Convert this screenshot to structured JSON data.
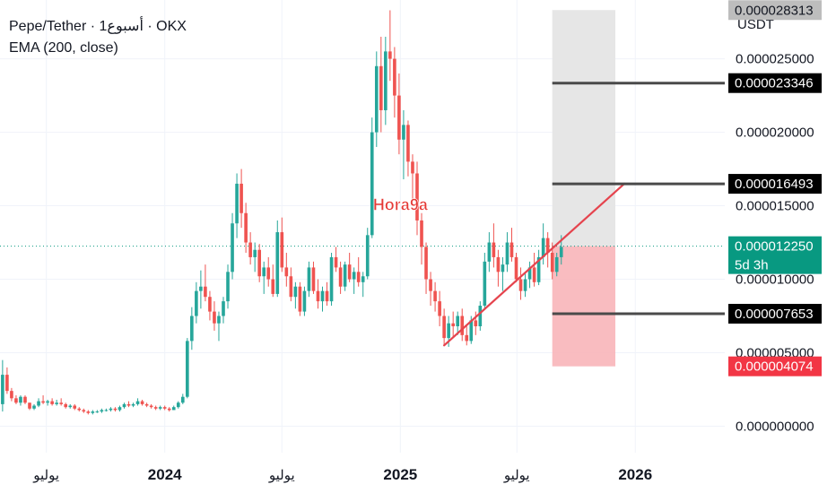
{
  "header": {
    "symbol_line": "Pepe/Tether · 1أسبوع · OKX",
    "indicator": "EMA (200, close)"
  },
  "axis": {
    "currency": "USDT"
  },
  "watermark": "Hora9a",
  "colors": {
    "up": "#26a69a",
    "down": "#ef5350",
    "trendline": "#e5444e",
    "level_line": "#4a4a4a",
    "profit_zone": "#e6e6e6",
    "loss_zone": "#f8b5b9",
    "price_tag": "#089981",
    "stop_tag": "#f23645",
    "target_tag": "#bdbdbd",
    "level_tag": "#000000"
  },
  "chart_data": {
    "type": "candlestick",
    "ylim": [
      -1.8e-06,
      2.9e-05
    ],
    "y_ticks": [
      {
        "label": "0.000000000",
        "value": 0
      },
      {
        "label": "0.000005000",
        "value": 5e-06
      },
      {
        "label": "0.000010000",
        "value": 1e-05
      },
      {
        "label": "0.000015000",
        "value": 1.5e-05
      },
      {
        "label": "0.000020000",
        "value": 2e-05
      },
      {
        "label": "0.000025000",
        "value": 2.5e-05
      }
    ],
    "x_ticks": [
      {
        "label": "يوليو",
        "date": "2023-07-01",
        "bold": false
      },
      {
        "label": "2024",
        "date": "2024-01-01",
        "bold": true
      },
      {
        "label": "يوليو",
        "date": "2024-07-01",
        "bold": false
      },
      {
        "label": "2025",
        "date": "2025-01-01",
        "bold": true
      },
      {
        "label": "يوليو",
        "date": "2025-07-01",
        "bold": false
      },
      {
        "label": "2026",
        "date": "2026-01-01",
        "bold": true
      }
    ],
    "x_range": [
      "2023-04-20",
      "2026-05-20"
    ],
    "candle_dates": {
      "first": "2023-04-24",
      "last": "2025-08-25",
      "interval_days": 7
    },
    "candles_ohlc": [
      [
        1.5e-06,
        4.5e-06,
        1e-06,
        3.5e-06
      ],
      [
        3.5e-06,
        4e-06,
        2.2e-06,
        2.4e-06
      ],
      [
        2.4e-06,
        2.6e-06,
        1.7e-06,
        1.9e-06
      ],
      [
        1.9e-06,
        2.1e-06,
        1.5e-06,
        1.6e-06
      ],
      [
        1.6e-06,
        2.1e-06,
        1.4e-06,
        2e-06
      ],
      [
        2e-06,
        2.1e-06,
        1.5e-06,
        1.6e-06
      ],
      [
        1.6e-06,
        1.6e-06,
        1.1e-06,
        1.2e-06
      ],
      [
        1.2e-06,
        1.5e-06,
        1.1e-06,
        1.4e-06
      ],
      [
        1.4e-06,
        1.9e-06,
        1.3e-06,
        1.7e-06
      ],
      [
        1.7e-06,
        2.1e-06,
        1.5e-06,
        1.6e-06
      ],
      [
        1.6e-06,
        1.8e-06,
        1.4e-06,
        1.7e-06
      ],
      [
        1.7e-06,
        1.9e-06,
        1.4e-06,
        1.5e-06
      ],
      [
        1.5e-06,
        1.8e-06,
        1.4e-06,
        1.6e-06
      ],
      [
        1.6e-06,
        1.9e-06,
        1.4e-06,
        1.5e-06
      ],
      [
        1.5e-06,
        1.6e-06,
        1.2e-06,
        1.3e-06
      ],
      [
        1.3e-06,
        1.5e-06,
        1.2e-06,
        1.4e-06
      ],
      [
        1.4e-06,
        1.5e-06,
        1.1e-06,
        1.2e-06
      ],
      [
        1.2e-06,
        1.3e-06,
        1e-06,
        1.1e-06
      ],
      [
        1.1e-06,
        1.2e-06,
        9e-07,
        1e-06
      ],
      [
        1e-06,
        1.1e-06,
        8e-07,
        9e-07
      ],
      [
        9e-07,
        1.1e-06,
        8e-07,
        1e-06
      ],
      [
        1e-06,
        1.1e-06,
        9e-07,
        1e-06
      ],
      [
        1e-06,
        1.2e-06,
        9e-07,
        1.1e-06
      ],
      [
        1.1e-06,
        1.2e-06,
        1e-06,
        1.1e-06
      ],
      [
        1.1e-06,
        1.3e-06,
        1e-06,
        1.2e-06
      ],
      [
        1.2e-06,
        1.3e-06,
        1e-06,
        1.1e-06
      ],
      [
        1.1e-06,
        1.4e-06,
        1e-06,
        1.3e-06
      ],
      [
        1.3e-06,
        1.6e-06,
        1.2e-06,
        1.5e-06
      ],
      [
        1.5e-06,
        1.7e-06,
        1.3e-06,
        1.4e-06
      ],
      [
        1.4e-06,
        1.6e-06,
        1.3e-06,
        1.5e-06
      ],
      [
        1.5e-06,
        1.9e-06,
        1.4e-06,
        1.7e-06
      ],
      [
        1.7e-06,
        1.8e-06,
        1.4e-06,
        1.5e-06
      ],
      [
        1.5e-06,
        1.6e-06,
        1.3e-06,
        1.4e-06
      ],
      [
        1.4e-06,
        1.5e-06,
        1.2e-06,
        1.3e-06
      ],
      [
        1.3e-06,
        1.4e-06,
        1.1e-06,
        1.2e-06
      ],
      [
        1.2e-06,
        1.4e-06,
        1.1e-06,
        1.3e-06
      ],
      [
        1.3e-06,
        1.4e-06,
        1.1e-06,
        1.2e-06
      ],
      [
        1.2e-06,
        1.3e-06,
        1e-06,
        1.1e-06
      ],
      [
        1.1e-06,
        1.4e-06,
        1.1e-06,
        1.3e-06
      ],
      [
        1.3e-06,
        1.7e-06,
        1.2e-06,
        1.6e-06
      ],
      [
        1.6e-06,
        2.2e-06,
        1.5e-06,
        2e-06
      ],
      [
        2e-06,
        6e-06,
        1.9e-06,
        5.8e-06
      ],
      [
        5.8e-06,
        8.1e-06,
        5.2e-06,
        7.5e-06
      ],
      [
        7.5e-06,
        9.8e-06,
        7e-06,
        9.2e-06
      ],
      [
        9.2e-06,
        1.06e-05,
        8e-06,
        9.5e-06
      ],
      [
        9.5e-06,
        1.1e-05,
        8.5e-06,
        8.8e-06
      ],
      [
        8.8e-06,
        9.2e-06,
        7.2e-06,
        7.8e-06
      ],
      [
        7.8e-06,
        8.5e-06,
        6.5e-06,
        7e-06
      ],
      [
        7e-06,
        7.8e-06,
        5.8e-06,
        7.5e-06
      ],
      [
        7.5e-06,
        8.8e-06,
        7e-06,
        8.5e-06
      ],
      [
        8.5e-06,
        1.1e-05,
        8e-06,
        1.05e-05
      ],
      [
        1.05e-05,
        1.45e-05,
        1e-05,
        1.38e-05
      ],
      [
        1.38e-05,
        1.72e-05,
        1.28e-05,
        1.65e-05
      ],
      [
        1.65e-05,
        1.75e-05,
        1.35e-05,
        1.45e-05
      ],
      [
        1.45e-05,
        1.52e-05,
        1.18e-05,
        1.25e-05
      ],
      [
        1.25e-05,
        1.32e-05,
        1.1e-05,
        1.15e-05
      ],
      [
        1.15e-05,
        1.25e-05,
        1.05e-05,
        1.2e-05
      ],
      [
        1.2e-05,
        1.24e-05,
        9.8e-06,
        1.02e-05
      ],
      [
        1.02e-05,
        1.12e-05,
        9e-06,
        1.08e-05
      ],
      [
        1.08e-05,
        1.15e-05,
        9.5e-06,
        1e-05
      ],
      [
        1e-05,
        1.1e-05,
        8.8e-06,
        9e-06
      ],
      [
        9e-06,
        1.4e-05,
        8.8e-06,
        1.32e-05
      ],
      [
        1.32e-05,
        1.42e-05,
        1.05e-05,
        1.08e-05
      ],
      [
        1.08e-05,
        1.18e-05,
        9.5e-06,
        1.02e-05
      ],
      [
        1.02e-05,
        1.08e-05,
        8.5e-06,
        8.8e-06
      ],
      [
        8.8e-06,
        9.8e-06,
        8e-06,
        9.5e-06
      ],
      [
        9.5e-06,
        9.8e-06,
        7.5e-06,
        7.8e-06
      ],
      [
        7.8e-06,
        9.5e-06,
        7.5e-06,
        9.2e-06
      ],
      [
        9.2e-06,
        1.12e-05,
        8.8e-06,
        1.08e-05
      ],
      [
        1.08e-05,
        1.12e-05,
        9e-06,
        9.2e-06
      ],
      [
        9.2e-06,
        1e-05,
        8e-06,
        8.5e-06
      ],
      [
        8.5e-06,
        9.5e-06,
        7.8e-06,
        9.2e-06
      ],
      [
        9.2e-06,
        9.8e-06,
        8.2e-06,
        8.5e-06
      ],
      [
        8.5e-06,
        1.18e-05,
        8.2e-06,
        1.15e-05
      ],
      [
        1.15e-05,
        1.22e-05,
        1.05e-05,
        1.08e-05
      ],
      [
        1.08e-05,
        1.12e-05,
        9e-06,
        9.5e-06
      ],
      [
        9.5e-06,
        1.12e-05,
        9.2e-06,
        1.1e-05
      ],
      [
        1.1e-05,
        1.18e-05,
        9.8e-06,
        1e-05
      ],
      [
        1e-05,
        1.08e-05,
        9e-06,
        1.05e-05
      ],
      [
        1.05e-05,
        1.15e-05,
        9.5e-06,
        9.8e-06
      ],
      [
        9.8e-06,
        1.05e-05,
        8.8e-06,
        1.02e-05
      ],
      [
        1.02e-05,
        1.35e-05,
        1e-05,
        1.3e-05
      ],
      [
        1.3e-05,
        2.1e-05,
        1.28e-05,
        2e-05
      ],
      [
        2e-05,
        2.55e-05,
        1.9e-05,
        2.45e-05
      ],
      [
        2.45e-05,
        2.65e-05,
        2e-05,
        2.15e-05
      ],
      [
        2.15e-05,
        2.65e-05,
        2.05e-05,
        2.55e-05
      ],
      [
        2.55e-05,
        2.83e-05,
        2.35e-05,
        2.5e-05
      ],
      [
        2.5e-05,
        2.58e-05,
        2.1e-05,
        2.25e-05
      ],
      [
        2.25e-05,
        2.4e-05,
        1.85e-05,
        1.95e-05
      ],
      [
        1.95e-05,
        2.15e-05,
        1.68e-05,
        2.05e-05
      ],
      [
        2.05e-05,
        2.08e-05,
        1.7e-05,
        1.8e-05
      ],
      [
        1.8e-05,
        1.85e-05,
        1.5e-05,
        1.72e-05
      ],
      [
        1.72e-05,
        1.8e-05,
        1.3e-05,
        1.4e-05
      ],
      [
        1.4e-05,
        1.45e-05,
        1.1e-05,
        1.22e-05
      ],
      [
        1.22e-05,
        1.25e-05,
        9e-06,
        1e-05
      ],
      [
        1e-05,
        1.05e-05,
        8.2e-06,
        9.2e-06
      ],
      [
        9.2e-06,
        9.8e-06,
        7.8e-06,
        8.5e-06
      ],
      [
        8.5e-06,
        9.2e-06,
        6.8e-06,
        7.5e-06
      ],
      [
        7.5e-06,
        8e-06,
        5.5e-06,
        6e-06
      ],
      [
        6e-06,
        7.5e-06,
        5.4e-06,
        7e-06
      ],
      [
        7e-06,
        7.8e-06,
        6e-06,
        6.8e-06
      ],
      [
        6.8e-06,
        7.8e-06,
        6.2e-06,
        7.5e-06
      ],
      [
        7.5e-06,
        8e-06,
        5.8e-06,
        6.2e-06
      ],
      [
        6.2e-06,
        6.8e-06,
        5.5e-06,
        5.8e-06
      ],
      [
        5.8e-06,
        7.5e-06,
        5.6e-06,
        7.2e-06
      ],
      [
        7.2e-06,
        7.8e-06,
        6.2e-06,
        6.8e-06
      ],
      [
        6.8e-06,
        8.5e-06,
        6.5e-06,
        8.2e-06
      ],
      [
        8.2e-06,
        1.18e-05,
        8e-06,
        1.12e-05
      ],
      [
        1.12e-05,
        1.32e-05,
        1.05e-05,
        1.25e-05
      ],
      [
        1.25e-05,
        1.38e-05,
        1.08e-05,
        1.15e-05
      ],
      [
        1.15e-05,
        1.2e-05,
        9.5e-06,
        1.05e-05
      ],
      [
        1.05e-05,
        1.15e-05,
        9.2e-06,
        1.1e-05
      ],
      [
        1.1e-05,
        1.32e-05,
        1.05e-05,
        1.25e-05
      ],
      [
        1.25e-05,
        1.35e-05,
        1.12e-05,
        1.15e-05
      ],
      [
        1.15e-05,
        1.18e-05,
        9.8e-06,
        1e-05
      ],
      [
        1e-05,
        1.08e-05,
        8.6e-06,
        9.2e-06
      ],
      [
        9.2e-06,
        1.05e-05,
        8.8e-06,
        1e-05
      ],
      [
        1e-05,
        1.12e-05,
        9.4e-06,
        1.08e-05
      ],
      [
        1.08e-05,
        1.18e-05,
        9.5e-06,
        9.8e-06
      ],
      [
        9.8e-06,
        1.2e-05,
        9.6e-06,
        1.15e-05
      ],
      [
        1.15e-05,
        1.38e-05,
        1.1e-05,
        1.28e-05
      ],
      [
        1.28e-05,
        1.32e-05,
        1.08e-05,
        1.18e-05
      ],
      [
        1.18e-05,
        1.25e-05,
        1e-05,
        1.05e-05
      ],
      [
        1.05e-05,
        1.18e-05,
        1.02e-05,
        1.15e-05
      ],
      [
        1.15e-05,
        1.3e-05,
        1.1e-05,
        1.22e-05
      ]
    ],
    "trendline": {
      "start": {
        "date": "2025-03-10",
        "value": 5.5e-06
      },
      "end": {
        "date": "2025-12-15",
        "value": 1.65e-05
      }
    },
    "position": {
      "date_start": "2025-08-25",
      "date_end": "2025-12-01",
      "entry": 1.225e-05,
      "target": 2.8313e-05,
      "stop": 4.074e-06
    },
    "levels": [
      {
        "label": "0.000023346",
        "value": 2.3346e-05,
        "date_start": "2025-08-25"
      },
      {
        "label": "0.000016493",
        "value": 1.6493e-05,
        "date_start": "2025-08-25"
      },
      {
        "label": "0.000007653",
        "value": 7.653e-06,
        "date_start": "2025-08-25"
      }
    ],
    "price_tags": [
      {
        "name": "target-price-tag",
        "label": "0.000028313",
        "value": 2.8313e-05,
        "style": "target"
      },
      {
        "name": "current-price-tag",
        "label": "0.000012250",
        "sublabel": "5d 3h",
        "value": 1.225e-05,
        "style": "price"
      },
      {
        "name": "stop-price-tag",
        "label": "0.000004074",
        "value": 4.074e-06,
        "style": "stop"
      }
    ]
  }
}
